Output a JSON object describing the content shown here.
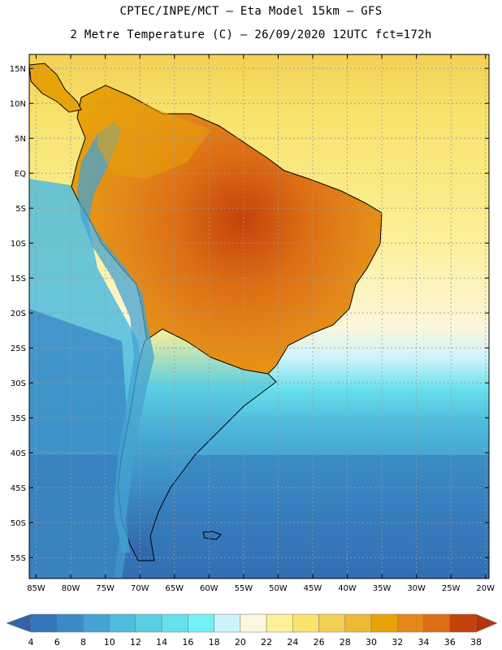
{
  "header": {
    "line1": "CPTEC/INPE/MCT –  Eta Model 15km – GFS",
    "line2": "2 Metre Temperature (C) – 26/09/2020 12UTC fct=172h"
  },
  "axes": {
    "lat_labels": [
      "15N",
      "10N",
      "5N",
      "EQ",
      "5S",
      "10S",
      "15S",
      "20S",
      "25S",
      "30S",
      "35S",
      "40S",
      "45S",
      "50S",
      "55S"
    ],
    "lat_values": [
      15,
      10,
      5,
      0,
      -5,
      -10,
      -15,
      -20,
      -25,
      -30,
      -35,
      -40,
      -45,
      -50,
      -55
    ],
    "lon_labels": [
      "85W",
      "80W",
      "75W",
      "70W",
      "65W",
      "60W",
      "55W",
      "50W",
      "45W",
      "40W",
      "35W",
      "30W",
      "25W",
      "20W"
    ],
    "lon_values": [
      -85,
      -80,
      -75,
      -70,
      -65,
      -60,
      -55,
      -50,
      -45,
      -40,
      -35,
      -30,
      -25,
      -20
    ],
    "lat_range": [
      -58,
      17
    ],
    "lon_range": [
      -86,
      -19.5
    ]
  },
  "colorbar": {
    "values": [
      4,
      6,
      8,
      10,
      12,
      14,
      16,
      18,
      20,
      22,
      24,
      26,
      28,
      30,
      32,
      34,
      36,
      38
    ],
    "colors": [
      "#2f64a8",
      "#3476b8",
      "#3b8ac6",
      "#44a3d2",
      "#4fbcdc",
      "#5acfe2",
      "#66e0ec",
      "#72f2f6",
      "#cdf3fa",
      "#fcf6dc",
      "#fcf09a",
      "#f8e36c",
      "#f2d054",
      "#ecba34",
      "#e8a20a",
      "#e4881a",
      "#dc6e14",
      "#c4420c",
      "#b2360a"
    ]
  },
  "colors": {
    "ocean_tropical": "#f8e36c",
    "ocean_north": "#f2d054",
    "ocean_south_warm": "#fcf6dc",
    "ocean_mid": "#5acfe2",
    "ocean_cold": "#3476b8",
    "ocean_deep": "#2f64a8",
    "land_hot": "#dc6e14",
    "land_warm": "#e8a20a",
    "coast": "#000000",
    "grid": "#9a9a9a"
  }
}
